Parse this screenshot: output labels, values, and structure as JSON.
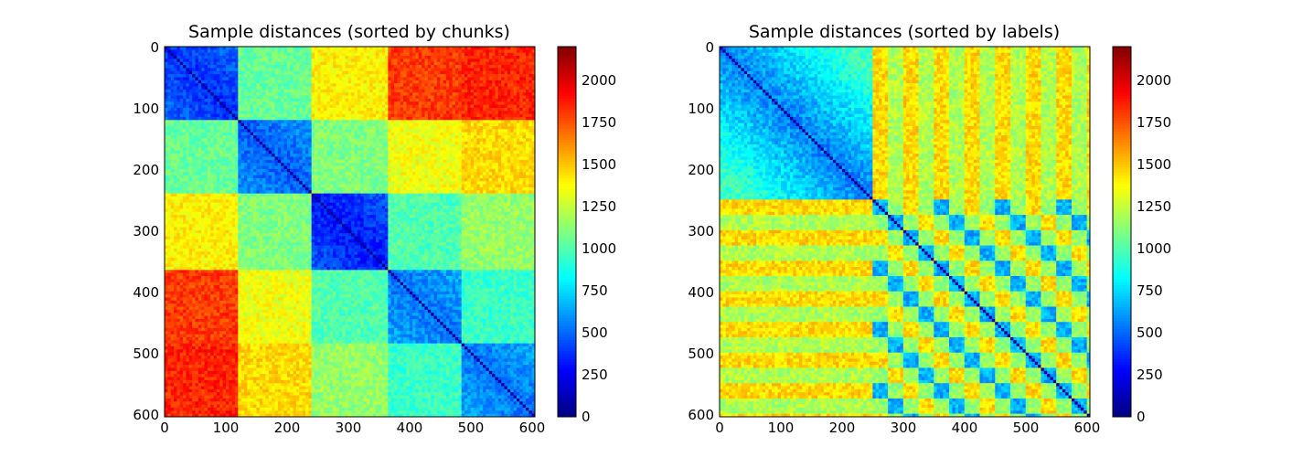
{
  "chart_data": [
    {
      "type": "heatmap",
      "title": "Sample distances (sorted by chunks)",
      "xlabel": "",
      "ylabel": "",
      "xlim": [
        0,
        605
      ],
      "ylim": [
        605,
        0
      ],
      "x_ticks": [
        0,
        100,
        200,
        300,
        400,
        500,
        600
      ],
      "y_ticks": [
        0,
        100,
        200,
        300,
        400,
        500,
        600
      ],
      "x_tick_labels": [
        "0",
        "100",
        "200",
        "300",
        "400",
        "500",
        "600"
      ],
      "y_tick_labels": [
        "0",
        "100",
        "200",
        "300",
        "400",
        "500",
        "600"
      ],
      "colormap": "jet",
      "value_range": [
        0,
        2200
      ],
      "colorbar_ticks": [
        0,
        250,
        500,
        750,
        1000,
        1250,
        1500,
        1750,
        2000
      ],
      "colorbar_tick_labels": [
        "0",
        "250",
        "500",
        "750",
        "1000",
        "1250",
        "1500",
        "1750",
        "2000"
      ],
      "diagonal_value": 0,
      "n_samples": 605,
      "group_boundaries": [
        0,
        121,
        242,
        363,
        484,
        605
      ],
      "block_mean_values": [
        [
          550,
          1050,
          1400,
          1800,
          1850
        ],
        [
          1050,
          650,
          1100,
          1350,
          1450
        ],
        [
          1400,
          1100,
          500,
          1000,
          1150
        ],
        [
          1800,
          1350,
          1000,
          700,
          950
        ],
        [
          1850,
          1450,
          1150,
          950,
          700
        ]
      ]
    },
    {
      "type": "heatmap",
      "title": "Sample distances (sorted by labels)",
      "xlabel": "",
      "ylabel": "",
      "xlim": [
        0,
        605
      ],
      "ylim": [
        605,
        0
      ],
      "x_ticks": [
        0,
        100,
        200,
        300,
        400,
        500,
        600
      ],
      "y_ticks": [
        0,
        100,
        200,
        300,
        400,
        500,
        600
      ],
      "x_tick_labels": [
        "0",
        "100",
        "200",
        "300",
        "400",
        "500",
        "600"
      ],
      "y_tick_labels": [
        "0",
        "100",
        "200",
        "300",
        "400",
        "500",
        "600"
      ],
      "colormap": "jet",
      "value_range": [
        0,
        2200
      ],
      "colorbar_ticks": [
        0,
        250,
        500,
        750,
        1000,
        1250,
        1500,
        1750,
        2000
      ],
      "colorbar_tick_labels": [
        "0",
        "250",
        "500",
        "750",
        "1000",
        "1250",
        "1500",
        "1750",
        "2000"
      ],
      "diagonal_value": 0,
      "n_samples": 605,
      "label_split": 248,
      "block_mean_values": {
        "first_label_block": 950,
        "cross_block": 1350,
        "second_label_block": 1150,
        "second_block_periodic_stripes": "period ~25 samples, values 500-1600"
      }
    }
  ]
}
